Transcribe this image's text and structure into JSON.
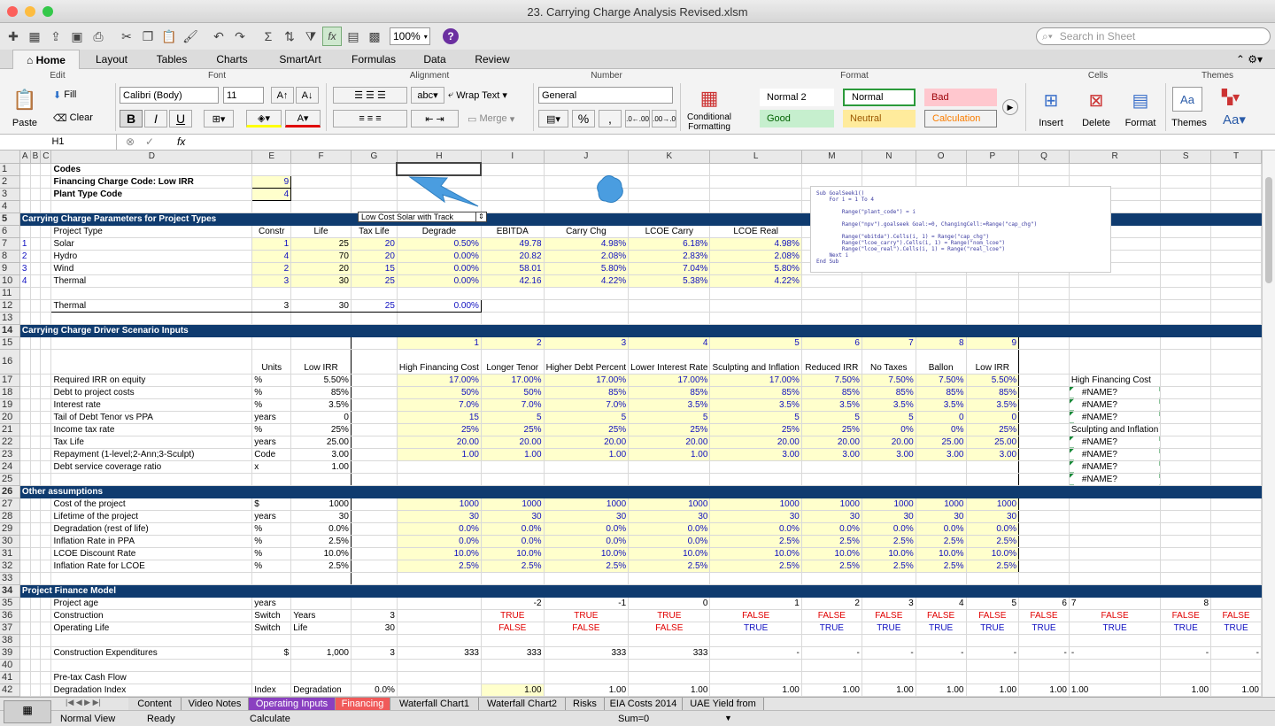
{
  "app": {
    "title": "23. Carrying Charge Analysis Revised.xlsm",
    "zoom": "100%",
    "search_placeholder": "Search in Sheet"
  },
  "ribbon_tabs": [
    "Home",
    "Layout",
    "Tables",
    "Charts",
    "SmartArt",
    "Formulas",
    "Data",
    "Review"
  ],
  "ribbon": {
    "groups": [
      "Edit",
      "Font",
      "Alignment",
      "Number",
      "Format",
      "Cells",
      "Themes"
    ],
    "paste": "Paste",
    "fill": "Fill",
    "clear": "Clear",
    "font_name": "Calibri (Body)",
    "font_size": "11",
    "bold": "B",
    "italic": "I",
    "underline": "U",
    "abc": "abc",
    "wrap_text": "Wrap Text",
    "merge": "Merge",
    "number_format": "General",
    "percent": "%",
    "comma": ",",
    "inc_dec": ".0←.00",
    "dec_dec": ".00→.0",
    "conditional": "Conditional Formatting",
    "styles": {
      "normal2": "Normal 2",
      "normal": "Normal",
      "bad": "Bad",
      "good": "Good",
      "neutral": "Neutral",
      "calculation": "Calculation"
    },
    "insert": "Insert",
    "delete": "Delete",
    "format": "Format",
    "themes": "Themes",
    "aa": "Aa"
  },
  "formula_bar": {
    "cell": "H1",
    "fx": "fx",
    "value": ""
  },
  "columns": [
    "A",
    "B",
    "C",
    "D",
    "E",
    "F",
    "G",
    "H",
    "I",
    "J",
    "K",
    "L",
    "M",
    "N",
    "O",
    "P",
    "Q",
    "R",
    "S",
    "T"
  ],
  "dropdown_value": "Low Cost Solar with Track",
  "vba_code": [
    "Sub GoalSeek1()",
    "    For i = 1 To 4",
    "",
    "        Range(\"plant_code\") = i",
    "",
    "        Range(\"npv\").goalseek Goal:=0, ChangingCell:=Range(\"cap_chg\")",
    "",
    "        Range(\"ebitda\").Cells(i, 1) = Range(\"cap_chg\")",
    "        Range(\"lcoe_carry\").Cells(i, 1) = Range(\"nom_lcoe\")",
    "        Range(\"lcoe_real\").Cells(i, 1) = Range(\"real_lcoe\")",
    "    Next i",
    "End Sub"
  ],
  "rows": [
    {
      "n": "1",
      "cells": {
        "D": "Codes"
      }
    },
    {
      "n": "2",
      "cells": {
        "D": "Financing Charge Code: Low IRR",
        "E": "9"
      }
    },
    {
      "n": "3",
      "cells": {
        "D": "Plant Type Code",
        "E": "4"
      }
    },
    {
      "n": "4",
      "cells": {}
    },
    {
      "n": "5",
      "sec": "Carrying Charge Parameters for Project Types"
    },
    {
      "n": "6",
      "cells": {
        "A": "",
        "D": "Project Type",
        "E": "Constr",
        "F": "Life",
        "G": "Tax Life",
        "H": "Degrade",
        "I": "EBITDA",
        "J": "Carry Chg",
        "K": "LCOE Carry",
        "L": "LCOE Real"
      }
    },
    {
      "n": "7",
      "cells": {
        "A": "1",
        "D": "Solar",
        "E": "1",
        "F": "25",
        "G": "20",
        "H": "0.50%",
        "I": "49.78",
        "J": "4.98%",
        "K": "6.18%",
        "L": "4.98%"
      }
    },
    {
      "n": "8",
      "cells": {
        "A": "2",
        "D": "Hydro",
        "E": "4",
        "F": "70",
        "G": "20",
        "H": "0.00%",
        "I": "20.82",
        "J": "2.08%",
        "K": "2.83%",
        "L": "2.08%"
      }
    },
    {
      "n": "9",
      "cells": {
        "A": "3",
        "D": "Wind",
        "E": "2",
        "F": "20",
        "G": "15",
        "H": "0.00%",
        "I": "58.01",
        "J": "5.80%",
        "K": "7.04%",
        "L": "5.80%"
      }
    },
    {
      "n": "10",
      "cells": {
        "A": "4",
        "D": "Thermal",
        "E": "3",
        "F": "30",
        "G": "25",
        "H": "0.00%",
        "I": "42.16",
        "J": "4.22%",
        "K": "5.38%",
        "L": "4.22%"
      }
    },
    {
      "n": "11",
      "cells": {}
    },
    {
      "n": "12",
      "cells": {
        "D": "Thermal",
        "E": "3",
        "F": "30",
        "G": "25",
        "H": "0.00%"
      }
    },
    {
      "n": "13",
      "cells": {}
    },
    {
      "n": "14",
      "sec": "Carrying Charge Driver Scenario Inputs"
    },
    {
      "n": "15",
      "cells": {
        "H": "1",
        "I": "2",
        "J": "3",
        "K": "4",
        "L": "5",
        "M": "6",
        "N": "7",
        "O": "8",
        "P": "9"
      }
    },
    {
      "n": "16",
      "tall": true,
      "cells": {
        "E": "Units",
        "F": "Low IRR",
        "H": "High Financing Cost",
        "I": "Longer Tenor",
        "J": "Higher Debt Percent",
        "K": "Lower Interest Rate",
        "L": "Sculpting and Inflation",
        "M": "Reduced IRR",
        "N": "No Taxes",
        "O": "Ballon",
        "P": "Low IRR"
      }
    },
    {
      "n": "17",
      "cells": {
        "D": "Required IRR on equity",
        "E": "%",
        "F": "5.50%",
        "H": "17.00%",
        "I": "17.00%",
        "J": "17.00%",
        "K": "17.00%",
        "L": "17.00%",
        "M": "7.50%",
        "N": "7.50%",
        "O": "7.50%",
        "P": "5.50%",
        "R": "High Financing Cost"
      }
    },
    {
      "n": "18",
      "cells": {
        "D": "Debt to project costs",
        "E": "%",
        "F": "85%",
        "H": "50%",
        "I": "50%",
        "J": "85%",
        "K": "85%",
        "L": "85%",
        "M": "85%",
        "N": "85%",
        "O": "85%",
        "P": "85%",
        "R": "#NAME?"
      }
    },
    {
      "n": "19",
      "cells": {
        "D": "Interest rate",
        "E": "%",
        "F": "3.5%",
        "H": "7.0%",
        "I": "7.0%",
        "J": "7.0%",
        "K": "3.5%",
        "L": "3.5%",
        "M": "3.5%",
        "N": "3.5%",
        "O": "3.5%",
        "P": "3.5%",
        "R": "#NAME?"
      }
    },
    {
      "n": "20",
      "cells": {
        "D": "Tail of Debt Tenor vs PPA",
        "E": "years",
        "F": "0",
        "H": "15",
        "I": "5",
        "J": "5",
        "K": "5",
        "L": "5",
        "M": "5",
        "N": "5",
        "O": "0",
        "P": "0",
        "R": "#NAME?"
      }
    },
    {
      "n": "21",
      "cells": {
        "D": "Income tax rate",
        "E": "%",
        "F": "25%",
        "H": "25%",
        "I": "25%",
        "J": "25%",
        "K": "25%",
        "L": "25%",
        "M": "25%",
        "N": "0%",
        "O": "0%",
        "P": "25%",
        "R": "Sculpting and Inflation"
      }
    },
    {
      "n": "22",
      "cells": {
        "D": "Tax Life",
        "E": "years",
        "F": "25.00",
        "H": "20.00",
        "I": "20.00",
        "J": "20.00",
        "K": "20.00",
        "L": "20.00",
        "M": "20.00",
        "N": "20.00",
        "O": "25.00",
        "P": "25.00",
        "R": "#NAME?"
      }
    },
    {
      "n": "23",
      "cells": {
        "D": "Repayment (1-level;2-Ann;3-Sculpt)",
        "E": "Code",
        "F": "3.00",
        "H": "1.00",
        "I": "1.00",
        "J": "1.00",
        "K": "1.00",
        "L": "3.00",
        "M": "3.00",
        "N": "3.00",
        "O": "3.00",
        "P": "3.00",
        "R": "#NAME?"
      }
    },
    {
      "n": "24",
      "cells": {
        "D": "Debt service coverage ratio",
        "E": "x",
        "F": "1.00",
        "R": "#NAME?"
      }
    },
    {
      "n": "25",
      "cells": {
        "R": "#NAME?"
      }
    },
    {
      "n": "26",
      "sec": "Other assumptions"
    },
    {
      "n": "27",
      "cells": {
        "D": "Cost of the project",
        "E": "$",
        "F": "1000",
        "H": "1000",
        "I": "1000",
        "J": "1000",
        "K": "1000",
        "L": "1000",
        "M": "1000",
        "N": "1000",
        "O": "1000",
        "P": "1000"
      }
    },
    {
      "n": "28",
      "cells": {
        "D": "Lifetime of the project",
        "E": "years",
        "F": "30",
        "H": "30",
        "I": "30",
        "J": "30",
        "K": "30",
        "L": "30",
        "M": "30",
        "N": "30",
        "O": "30",
        "P": "30"
      }
    },
    {
      "n": "29",
      "cells": {
        "D": "Degradation (rest of life)",
        "E": "%",
        "F": "0.0%",
        "H": "0.0%",
        "I": "0.0%",
        "J": "0.0%",
        "K": "0.0%",
        "L": "0.0%",
        "M": "0.0%",
        "N": "0.0%",
        "O": "0.0%",
        "P": "0.0%"
      }
    },
    {
      "n": "30",
      "cells": {
        "D": "Inflation Rate in PPA",
        "E": "%",
        "F": "2.5%",
        "H": "0.0%",
        "I": "0.0%",
        "J": "0.0%",
        "K": "0.0%",
        "L": "2.5%",
        "M": "2.5%",
        "N": "2.5%",
        "O": "2.5%",
        "P": "2.5%"
      }
    },
    {
      "n": "31",
      "cells": {
        "D": "LCOE Discount Rate",
        "E": "%",
        "F": "10.0%",
        "H": "10.0%",
        "I": "10.0%",
        "J": "10.0%",
        "K": "10.0%",
        "L": "10.0%",
        "M": "10.0%",
        "N": "10.0%",
        "O": "10.0%",
        "P": "10.0%"
      }
    },
    {
      "n": "32",
      "cells": {
        "D": "Inflation Rate for LCOE",
        "E": "%",
        "F": "2.5%",
        "H": "2.5%",
        "I": "2.5%",
        "J": "2.5%",
        "K": "2.5%",
        "L": "2.5%",
        "M": "2.5%",
        "N": "2.5%",
        "O": "2.5%",
        "P": "2.5%"
      }
    },
    {
      "n": "33",
      "cells": {}
    },
    {
      "n": "34",
      "sec": "Project Finance Model"
    },
    {
      "n": "35",
      "cells": {
        "D": "Project age",
        "E": "years",
        "I": "-2",
        "J": "-1",
        "K": "0",
        "L": "1",
        "M": "2",
        "N": "3",
        "O": "4",
        "P": "5",
        "Q": "6",
        "R": "7",
        "S": "8"
      }
    },
    {
      "n": "36",
      "cells": {
        "D": "Construction",
        "E": "Switch",
        "F": "Years",
        "G": "3",
        "I": "TRUE",
        "J": "TRUE",
        "K": "TRUE",
        "L": "FALSE",
        "M": "FALSE",
        "N": "FALSE",
        "O": "FALSE",
        "P": "FALSE",
        "Q": "FALSE",
        "R": "FALSE",
        "S": "FALSE",
        "T": "FALSE"
      }
    },
    {
      "n": "37",
      "cells": {
        "D": "Operating Life",
        "E": "Switch",
        "F": "Life",
        "G": "30",
        "I": "FALSE",
        "J": "FALSE",
        "K": "FALSE",
        "L": "TRUE",
        "M": "TRUE",
        "N": "TRUE",
        "O": "TRUE",
        "P": "TRUE",
        "Q": "TRUE",
        "R": "TRUE",
        "S": "TRUE",
        "T": "TRUE"
      }
    },
    {
      "n": "38",
      "cells": {}
    },
    {
      "n": "39",
      "cells": {
        "D": "Construction Expenditures",
        "E": "$",
        "F": "1,000",
        "G": "3",
        "H": "333",
        "I": "333",
        "J": "333",
        "K": "333",
        "L": "-",
        "M": "-",
        "N": "-",
        "O": "-",
        "P": "-",
        "Q": "-",
        "R": "-",
        "S": "-",
        "T": "-"
      }
    },
    {
      "n": "40",
      "cells": {}
    },
    {
      "n": "41",
      "cells": {
        "D": "Pre-tax Cash Flow"
      }
    },
    {
      "n": "42",
      "cells": {
        "D": "Degradation Index",
        "E": "Index",
        "F": "Degradation",
        "G": "0.0%",
        "I": "1.00",
        "J": "1.00",
        "K": "1.00",
        "L": "1.00",
        "M": "1.00",
        "N": "1.00",
        "O": "1.00",
        "P": "1.00",
        "Q": "1.00",
        "R": "1.00",
        "S": "1.00",
        "T": "1.00"
      }
    }
  ],
  "sheet_tabs": [
    "Content",
    "Video Notes",
    "Operating Inputs",
    "Financing",
    "Waterfall Chart1",
    "Waterfall Chart2",
    "Risks",
    "EIA Costs 2014",
    "UAE Yield from Re"
  ],
  "status": {
    "view": "Normal View",
    "ready": "Ready",
    "calc": "Calculate",
    "sum": "Sum=0"
  }
}
